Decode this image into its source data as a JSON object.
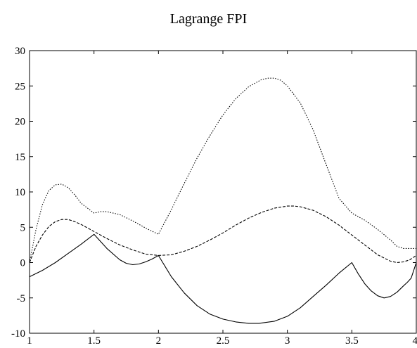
{
  "chart_data": {
    "type": "line",
    "title": "Lagrange FPI",
    "xlabel": "",
    "ylabel": "",
    "xlim": [
      1,
      4
    ],
    "ylim": [
      -10,
      30
    ],
    "grid": false,
    "legend": "none",
    "xticks": [
      1,
      1.5,
      2,
      2.5,
      3,
      3.5,
      4
    ],
    "xtick_labels": [
      "1",
      "1.5",
      "2",
      "2.5",
      "3",
      "3.5",
      "4"
    ],
    "yticks": [
      -10,
      -5,
      0,
      5,
      10,
      15,
      20,
      25,
      30
    ],
    "ytick_labels": [
      "-10",
      "-5",
      "0",
      "5",
      "10",
      "15",
      "20",
      "25",
      "30"
    ],
    "series": [
      {
        "style": "solid",
        "color": "#000000",
        "x": [
          1,
          1.1,
          1.2,
          1.3,
          1.4,
          1.5,
          1.6,
          1.7,
          1.75,
          1.8,
          1.85,
          1.9,
          1.95,
          2,
          2.1,
          2.2,
          2.3,
          2.4,
          2.5,
          2.6,
          2.7,
          2.78,
          2.9,
          3,
          3.1,
          3.2,
          3.3,
          3.4,
          3.5,
          3.55,
          3.6,
          3.65,
          3.7,
          3.75,
          3.8,
          3.85,
          3.9,
          3.93,
          3.96,
          4
        ],
        "y": [
          -2,
          -1.1,
          0,
          1.3,
          2.6,
          4,
          2,
          0.4,
          -0.1,
          -0.3,
          -0.2,
          0.1,
          0.5,
          1,
          -2,
          -4.3,
          -6.1,
          -7.3,
          -8,
          -8.4,
          -8.6,
          -8.6,
          -8.3,
          -7.6,
          -6.4,
          -4.8,
          -3.2,
          -1.5,
          0,
          -1.6,
          -3,
          -4,
          -4.7,
          -5,
          -4.8,
          -4.2,
          -3.3,
          -2.8,
          -2.2,
          0
        ]
      },
      {
        "style": "dashed",
        "color": "#000000",
        "x": [
          1,
          1.05,
          1.1,
          1.15,
          1.2,
          1.25,
          1.3,
          1.35,
          1.4,
          1.5,
          1.6,
          1.7,
          1.8,
          1.9,
          2,
          2.1,
          2.2,
          2.3,
          2.4,
          2.5,
          2.6,
          2.7,
          2.8,
          2.9,
          3,
          3.05,
          3.1,
          3.2,
          3.3,
          3.4,
          3.5,
          3.6,
          3.7,
          3.8,
          3.85,
          3.9,
          3.95,
          4
        ],
        "y": [
          0,
          2.3,
          3.9,
          5.1,
          5.8,
          6.1,
          6.1,
          5.8,
          5.4,
          4.4,
          3.4,
          2.5,
          1.8,
          1.2,
          1,
          1.1,
          1.6,
          2.3,
          3.2,
          4.2,
          5.3,
          6.3,
          7.1,
          7.7,
          8,
          8,
          7.9,
          7.4,
          6.5,
          5.3,
          3.9,
          2.5,
          1.1,
          0.2,
          0,
          0.1,
          0.4,
          1
        ]
      },
      {
        "style": "dotted",
        "color": "#000000",
        "x": [
          1,
          1.05,
          1.1,
          1.15,
          1.2,
          1.25,
          1.3,
          1.35,
          1.4,
          1.5,
          1.55,
          1.6,
          1.7,
          1.8,
          1.9,
          2,
          2.1,
          2.2,
          2.3,
          2.4,
          2.5,
          2.6,
          2.7,
          2.8,
          2.85,
          2.9,
          2.95,
          3,
          3.1,
          3.2,
          3.3,
          3.4,
          3.5,
          3.6,
          3.7,
          3.8,
          3.85,
          3.9,
          4
        ],
        "y": [
          0,
          4.7,
          8.2,
          10.2,
          11,
          11.1,
          10.6,
          9.6,
          8.4,
          7,
          7.2,
          7.2,
          6.8,
          5.9,
          4.9,
          4,
          7.5,
          11.2,
          14.8,
          18,
          20.9,
          23.2,
          24.9,
          25.9,
          26.1,
          26.1,
          25.8,
          25,
          22.6,
          18.8,
          13.9,
          9.1,
          7,
          6,
          4.7,
          3.2,
          2.3,
          2,
          2
        ]
      }
    ]
  }
}
